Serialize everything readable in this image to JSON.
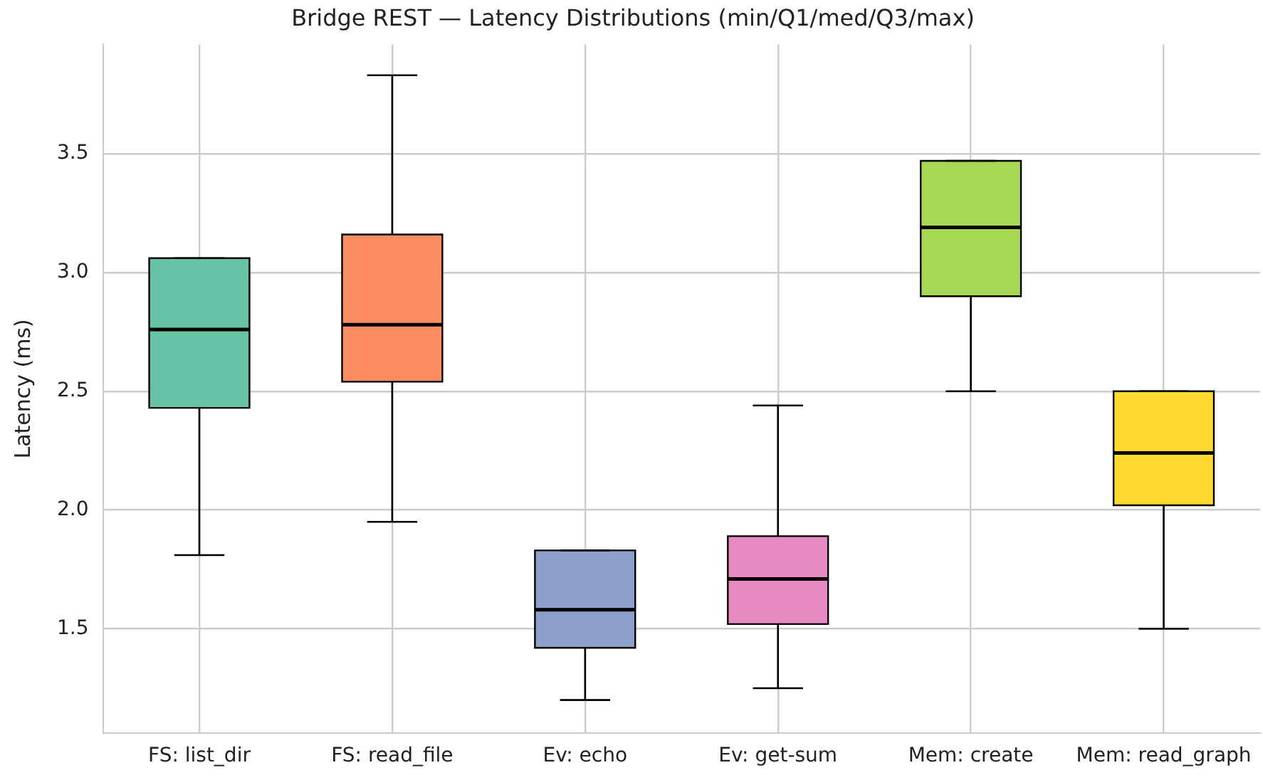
{
  "chart_data": {
    "type": "box",
    "title": "Bridge REST — Latency Distributions (min/Q1/med/Q3/max)",
    "ylabel": "Latency (ms)",
    "categories": [
      "FS: list_dir",
      "FS: read_file",
      "Ev: echo",
      "Ev: get-sum",
      "Mem: create",
      "Mem: read_graph"
    ],
    "boxes": [
      {
        "low": 1.81,
        "q1": 2.43,
        "median": 2.76,
        "q3": 3.06,
        "high": 3.06
      },
      {
        "low": 1.95,
        "q1": 2.54,
        "median": 2.78,
        "q3": 3.16,
        "high": 3.83
      },
      {
        "low": 1.2,
        "q1": 1.42,
        "median": 1.58,
        "q3": 1.83,
        "high": 1.83
      },
      {
        "low": 1.25,
        "q1": 1.52,
        "median": 1.71,
        "q3": 1.89,
        "high": 2.44
      },
      {
        "low": 2.5,
        "q1": 2.9,
        "median": 3.19,
        "q3": 3.47,
        "high": 3.47
      },
      {
        "low": 1.5,
        "q1": 2.02,
        "median": 2.24,
        "q3": 2.5,
        "high": 2.5
      }
    ],
    "colors": [
      "#66c2a5",
      "#fc8d62",
      "#8da0cb",
      "#e78ac3",
      "#a6d854",
      "#ffd92f"
    ],
    "ylim": [
      1.06,
      3.96
    ],
    "yticks": [
      {
        "value": 1.5,
        "label": "1.5"
      },
      {
        "value": 2,
        "label": "2.0"
      },
      {
        "value": 2.5,
        "label": "2.5"
      },
      {
        "value": 3,
        "label": "3.0"
      },
      {
        "value": 3.5,
        "label": "3.5"
      }
    ],
    "grid": true
  }
}
